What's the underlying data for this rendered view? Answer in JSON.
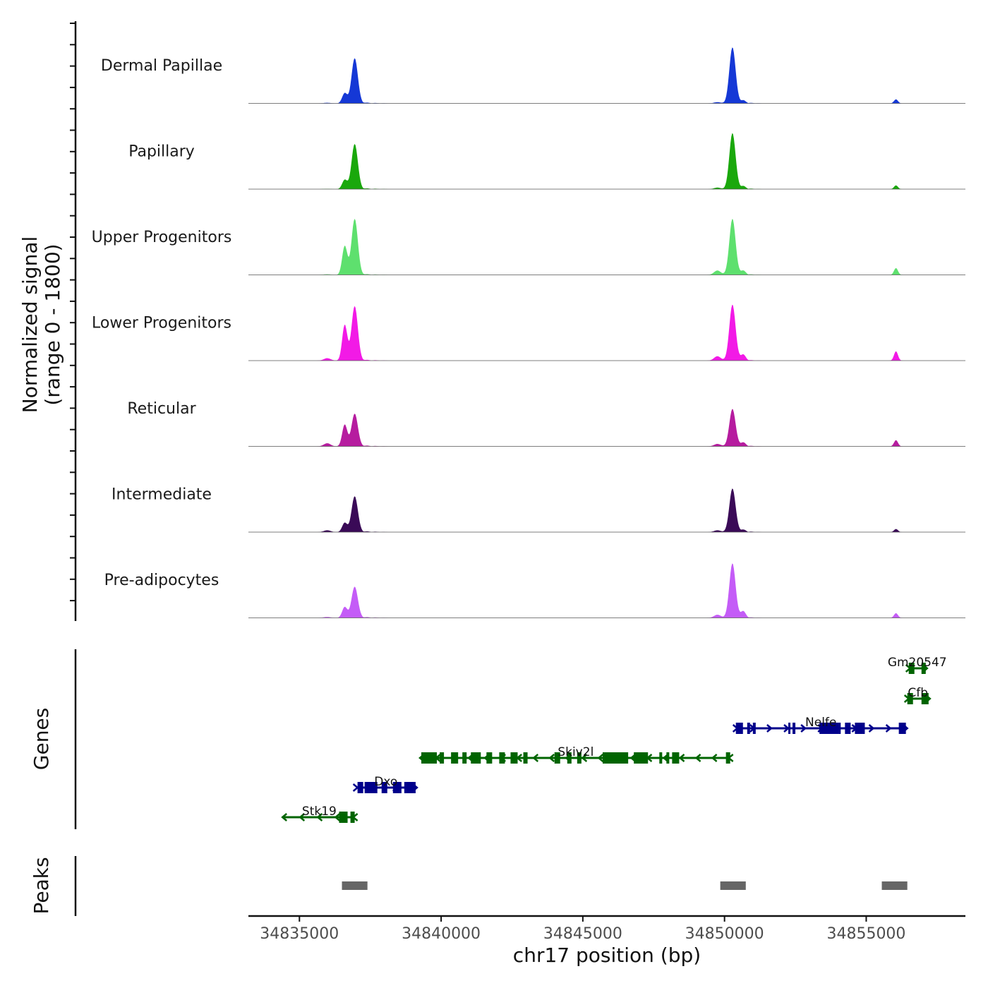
{
  "chart_data": {
    "type": "area",
    "chromosome": "chr17",
    "xlabel": "chr17 position (bp)",
    "xlim": [
      34833200,
      34858500
    ],
    "x_ticks": [
      34835000,
      34840000,
      34845000,
      34850000,
      34855000
    ],
    "x_tick_labels": [
      "34835000",
      "34840000",
      "34845000",
      "34850000",
      "34855000"
    ],
    "coverage": {
      "ylabel_line1": "Normalized signal",
      "ylabel_line2": "(range 0 - 1800)",
      "ylim": [
        0,
        1800
      ],
      "peak_positions": [
        34835980,
        34836600,
        34836950,
        34849750,
        34850280,
        34850650,
        34856050
      ],
      "series": [
        {
          "name": "Dermal Papillae",
          "color": "#1538d6",
          "values": [
            20,
            330,
            1450,
            40,
            1800,
            80,
            130
          ]
        },
        {
          "name": "Papillary",
          "color": "#1aa80c",
          "values": [
            10,
            300,
            1450,
            50,
            1800,
            80,
            120
          ]
        },
        {
          "name": "Upper Progenitors",
          "color": "#5ee06e",
          "values": [
            20,
            930,
            1800,
            140,
            1800,
            120,
            220
          ]
        },
        {
          "name": "Lower Progenitors",
          "color": "#f21ae6",
          "values": [
            80,
            1150,
            1750,
            140,
            1800,
            180,
            300
          ]
        },
        {
          "name": "Reticular",
          "color": "#b61c9f",
          "values": [
            100,
            700,
            1050,
            80,
            1200,
            110,
            200
          ]
        },
        {
          "name": "Intermediate",
          "color": "#3a0a57",
          "values": [
            60,
            300,
            1150,
            60,
            1400,
            60,
            100
          ]
        },
        {
          "name": "Pre-adipocytes",
          "color": "#c45cf7",
          "values": [
            30,
            350,
            1000,
            100,
            1750,
            200,
            150
          ]
        }
      ]
    },
    "genes": {
      "ylabel": "Genes",
      "items": [
        {
          "name": "Gm20547",
          "start": 34856500,
          "end": 34857100,
          "strand": "+",
          "color": "#006400",
          "exons": [
            [
              34856500,
              34856700
            ],
            [
              34856950,
              34857100
            ]
          ]
        },
        {
          "name": "Cfb",
          "start": 34856450,
          "end": 34857200,
          "strand": "+",
          "color": "#006400",
          "exons": [
            [
              34856450,
              34856650
            ],
            [
              34856950,
              34857200
            ]
          ]
        },
        {
          "name": "Nelfe",
          "start": 34850400,
          "end": 34856400,
          "strand": "+",
          "color": "#00008b",
          "exons": [
            [
              34850400,
              34850650
            ],
            [
              34850800,
              34850900
            ],
            [
              34851000,
              34851100
            ],
            [
              34852250,
              34852300
            ],
            [
              34852400,
              34852500
            ],
            [
              34853350,
              34854100
            ],
            [
              34854250,
              34854450
            ],
            [
              34854600,
              34854950
            ],
            [
              34856150,
              34856400
            ]
          ]
        },
        {
          "name": "Skiv2l",
          "start": 34839300,
          "end": 34850200,
          "strand": "-",
          "color": "#006400",
          "exons": [
            [
              34839300,
              34839850
            ],
            [
              34839950,
              34840100
            ],
            [
              34840350,
              34840600
            ],
            [
              34840750,
              34840900
            ],
            [
              34841050,
              34841400
            ],
            [
              34841600,
              34841800
            ],
            [
              34842050,
              34842250
            ],
            [
              34842450,
              34842700
            ],
            [
              34842900,
              34843050
            ],
            [
              34844000,
              34844200
            ],
            [
              34844450,
              34844600
            ],
            [
              34844800,
              34844950
            ],
            [
              34845700,
              34846600
            ],
            [
              34846800,
              34847300
            ],
            [
              34847700,
              34847800
            ],
            [
              34847950,
              34848050
            ],
            [
              34848150,
              34848400
            ],
            [
              34850050,
              34850200
            ]
          ]
        },
        {
          "name": "Dxo",
          "start": 34837000,
          "end": 34839100,
          "strand": "+",
          "color": "#00008b",
          "exons": [
            [
              34837050,
              34837250
            ],
            [
              34837300,
              34837750
            ],
            [
              34837900,
              34838100
            ],
            [
              34838300,
              34838600
            ],
            [
              34838700,
              34839100
            ]
          ]
        },
        {
          "name": "Stk19",
          "start": 34834450,
          "end": 34836950,
          "strand": "-",
          "color": "#006400",
          "exons": [
            [
              34836400,
              34836700
            ],
            [
              34836800,
              34836950
            ]
          ]
        }
      ]
    },
    "peaks": {
      "ylabel": "Peaks",
      "color": "#666666",
      "ranges": [
        [
          34836500,
          34837400
        ],
        [
          34849850,
          34850750
        ],
        [
          34855550,
          34856450
        ]
      ]
    }
  }
}
